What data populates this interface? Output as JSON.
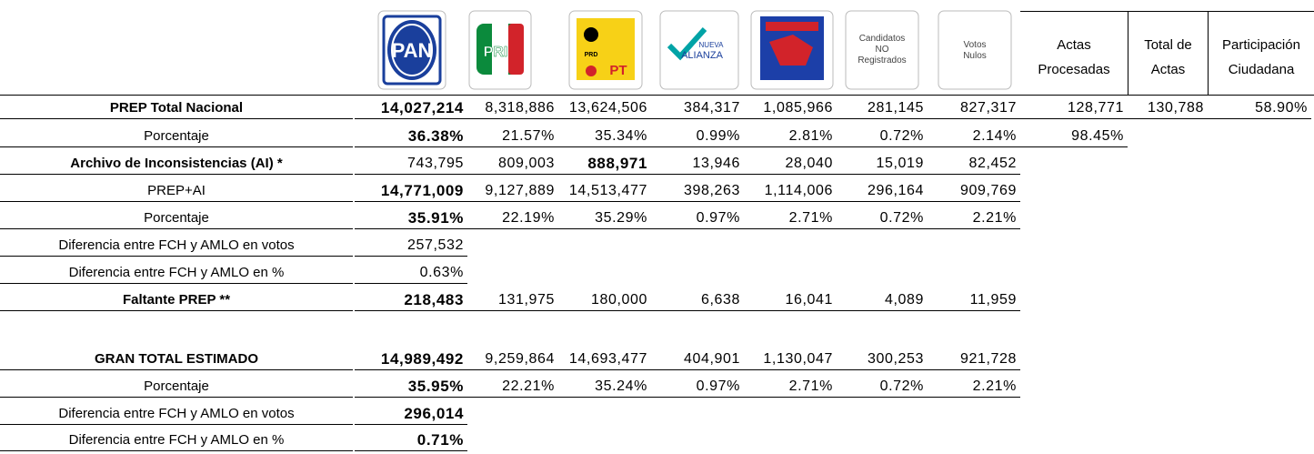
{
  "header": {
    "logos": [
      "PAN",
      "PRI",
      "PRD",
      "PT",
      "NUEVA",
      "ALIANZA"
    ],
    "columns": [
      [
        "Candidatos",
        "NO",
        "Registrados"
      ],
      [
        "Votos",
        "Nulos"
      ],
      [
        "Actas",
        "Procesadas"
      ],
      [
        "Total de",
        "Actas"
      ],
      [
        "Participación",
        "Ciudadana"
      ]
    ]
  },
  "table": {
    "rows": [
      {
        "label": "PREP  Total Nacional",
        "cells": [
          "14,027,214",
          "8,318,886",
          "13,624,506",
          "384,317",
          "1,085,966",
          "281,145",
          "827,317",
          "128,771",
          "130,788",
          "58.90%"
        ]
      },
      {
        "label": "Porcentaje",
        "cells": [
          "36.38%",
          "21.57%",
          "35.34%",
          "0.99%",
          "2.81%",
          "0.72%",
          "2.14%",
          "98.45%"
        ]
      },
      {
        "label": "Archivo de Inconsistencias (AI) *",
        "cells": [
          "743,795",
          "809,003",
          "888,971",
          "13,946",
          "28,040",
          "15,019",
          "82,452"
        ]
      },
      {
        "label": "PREP+AI",
        "cells": [
          "14,771,009",
          "9,127,889",
          "14,513,477",
          "398,263",
          "1,114,006",
          "296,164",
          "909,769"
        ]
      },
      {
        "label": "Porcentaje",
        "cells": [
          "35.91%",
          "22.19%",
          "35.29%",
          "0.97%",
          "2.71%",
          "0.72%",
          "2.21%"
        ]
      },
      {
        "label": "Diferencia entre FCH y AMLO en votos",
        "cells": [
          "257,532"
        ]
      },
      {
        "label": "Diferencia entre FCH y AMLO en %",
        "cells": [
          "0.63%"
        ]
      },
      {
        "label": "Faltante PREP **",
        "cells": [
          "218,483",
          "131,975",
          "180,000",
          "6,638",
          "16,041",
          "4,089",
          "11,959"
        ]
      },
      {
        "label": "GRAN TOTAL ESTIMADO",
        "cells": [
          "14,989,492",
          "9,259,864",
          "14,693,477",
          "404,901",
          "1,130,047",
          "300,253",
          "921,728"
        ]
      },
      {
        "label": "Porcentaje",
        "cells": [
          "35.95%",
          "22.21%",
          "35.24%",
          "0.97%",
          "2.71%",
          "0.72%",
          "2.21%"
        ]
      },
      {
        "label": "Diferencia entre FCH y AMLO en votos",
        "cells": [
          "296,014"
        ]
      },
      {
        "label": "Diferencia entre FCH y AMLO en %",
        "cells": [
          "0.71%"
        ]
      }
    ]
  }
}
